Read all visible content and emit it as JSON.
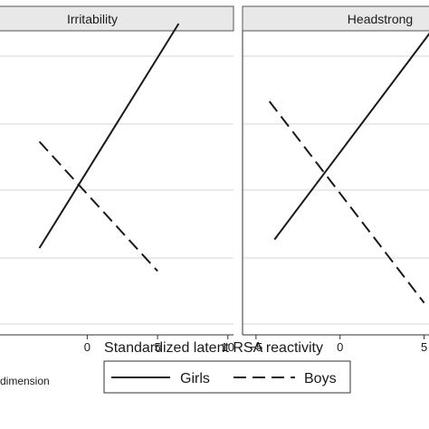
{
  "chart_data": {
    "type": "line",
    "xlabel": "Standardized latent RSA reactivity",
    "footnote": "dimension",
    "legend": {
      "placement": "bottom",
      "entries": [
        {
          "name": "Girls",
          "style": "solid"
        },
        {
          "name": "Boys",
          "style": "dashed"
        }
      ]
    },
    "grid": true,
    "panels": [
      {
        "title": "Irritability",
        "xlim": [
          -6.2,
          10.4
        ],
        "xticks": [
          0,
          5,
          10
        ],
        "xtick_labels": [
          "0",
          "5",
          "10"
        ],
        "ylim": [
          0,
          1
        ],
        "series": [
          {
            "name": "Girls",
            "style": "solid",
            "x": [
              -3.4,
              6.5
            ],
            "y": [
              0.27,
              1.05
            ]
          },
          {
            "name": "Boys",
            "style": "dashed",
            "x": [
              -3.4,
              5.0
            ],
            "y": [
              0.64,
              0.19
            ]
          }
        ]
      },
      {
        "title": "Headstrong",
        "xlim": [
          -5.8,
          5.4
        ],
        "xticks": [
          -5,
          0,
          5
        ],
        "xtick_labels": [
          "−5",
          "0",
          "5"
        ],
        "ylim": [
          0,
          1
        ],
        "series": [
          {
            "name": "Girls",
            "style": "solid",
            "x": [
              -3.9,
              5.5
            ],
            "y": [
              0.3,
              1.03
            ]
          },
          {
            "name": "Boys",
            "style": "dashed",
            "x": [
              -4.2,
              5.0
            ],
            "y": [
              0.78,
              0.08
            ]
          }
        ]
      }
    ]
  }
}
